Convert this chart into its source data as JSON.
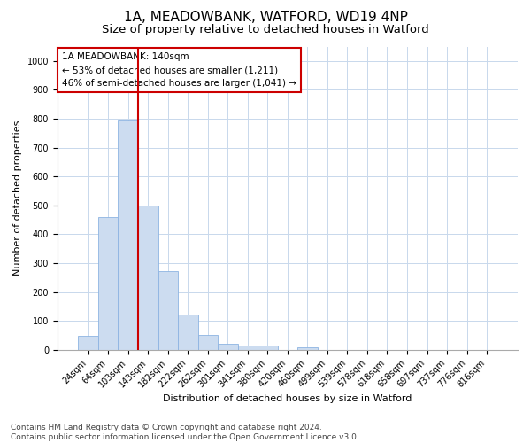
{
  "title1": "1A, MEADOWBANK, WATFORD, WD19 4NP",
  "title2": "Size of property relative to detached houses in Watford",
  "xlabel": "Distribution of detached houses by size in Watford",
  "ylabel": "Number of detached properties",
  "categories": [
    "24sqm",
    "64sqm",
    "103sqm",
    "143sqm",
    "182sqm",
    "222sqm",
    "262sqm",
    "301sqm",
    "341sqm",
    "380sqm",
    "420sqm",
    "460sqm",
    "499sqm",
    "539sqm",
    "578sqm",
    "618sqm",
    "658sqm",
    "697sqm",
    "737sqm",
    "776sqm",
    "816sqm"
  ],
  "values": [
    47,
    460,
    793,
    500,
    272,
    122,
    52,
    22,
    14,
    14,
    0,
    8,
    0,
    0,
    0,
    0,
    0,
    0,
    0,
    0,
    0
  ],
  "bar_color": "#ccdcf0",
  "bar_edge_color": "#8db4e2",
  "vline_color": "#cc0000",
  "annotation_text": "1A MEADOWBANK: 140sqm\n← 53% of detached houses are smaller (1,211)\n46% of semi-detached houses are larger (1,041) →",
  "annotation_box_color": "#ffffff",
  "annotation_box_edge": "#cc0000",
  "ylim": [
    0,
    1050
  ],
  "yticks": [
    0,
    100,
    200,
    300,
    400,
    500,
    600,
    700,
    800,
    900,
    1000
  ],
  "footnote": "Contains HM Land Registry data © Crown copyright and database right 2024.\nContains public sector information licensed under the Open Government Licence v3.0.",
  "bg_color": "#ffffff",
  "grid_color": "#c8d8ec",
  "title1_fontsize": 11,
  "title2_fontsize": 9.5,
  "axis_label_fontsize": 8,
  "tick_fontsize": 7,
  "footnote_fontsize": 6.5,
  "annotation_fontsize": 7.5
}
